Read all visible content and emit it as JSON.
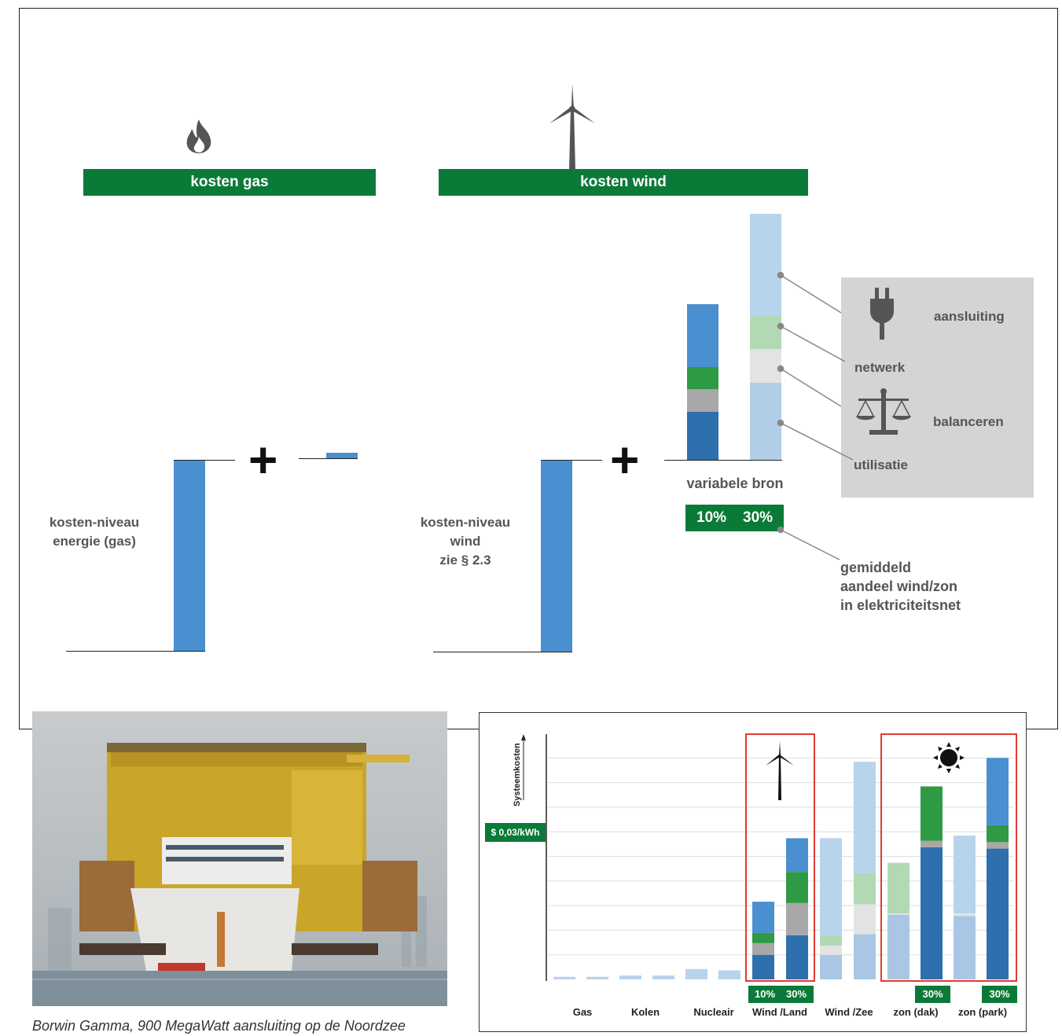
{
  "gas_panel": {
    "header": "kosten gas",
    "level_label_line1": "kosten-niveau",
    "level_label_line2": "energie (gas)",
    "icon": "flame-icon"
  },
  "wind_panel": {
    "header": "kosten wind",
    "level_label_line1": "kosten-niveau",
    "level_label_line2": "wind",
    "level_label_line3": "zie § 2.3",
    "icon": "wind-turbine-icon",
    "variable_label": "variabele bron",
    "pct_10": "10%",
    "pct_30": "30%"
  },
  "plus_sign": "+",
  "legend": {
    "aansluiting": "aansluiting",
    "netwerk": "netwerk",
    "balanceren": "balanceren",
    "utilisatie": "utilisatie",
    "share_line1": "gemiddeld",
    "share_line2": "aandeel wind/zon",
    "share_line3": "in elektriciteitsnet"
  },
  "photo": {
    "caption": "Borwin Gamma, 900 MegaWatt aansluiting op de Noordzee"
  },
  "colors": {
    "green_header": "#0b7a38",
    "bar_blue": "#4a8fd0",
    "dark_blue": "#2e6fad",
    "green": "#2e9a44",
    "gray": "#a8a8a8",
    "light_blue": "#b8d3ec",
    "light_green": "#b2d8b4",
    "light_gray": "#e3e3e3",
    "frame_red": "#e03b32"
  },
  "chart_data": {
    "type": "bar",
    "stacked": true,
    "ylabel": "Systeemkosten",
    "y_marker": "$ 0,03/kWh",
    "grid": true,
    "categories": [
      "Gas",
      "Kolen",
      "Nucleair",
      "Wind /Land",
      "Wind /Zee",
      "zon (dak)",
      "zon (park)"
    ],
    "penetration_labels": [
      "10%",
      "30%",
      "30%",
      "30%"
    ],
    "bars": [
      {
        "category": "Gas",
        "segments": [
          {
            "type": "base",
            "value": 0.1
          }
        ]
      },
      {
        "category": "Gas",
        "segments": [
          {
            "type": "base",
            "value": 0.1
          }
        ]
      },
      {
        "category": "Kolen",
        "segments": [
          {
            "type": "base",
            "value": 0.15
          }
        ]
      },
      {
        "category": "Kolen",
        "segments": [
          {
            "type": "base",
            "value": 0.15
          }
        ]
      },
      {
        "category": "Nucleair",
        "segments": [
          {
            "type": "base",
            "value": 0.4
          }
        ]
      },
      {
        "category": "Nucleair",
        "segments": [
          {
            "type": "base",
            "value": 0.35
          }
        ]
      },
      {
        "category": "Wind /Land",
        "share": "10%",
        "segments": [
          {
            "type": "utilisatie",
            "value": 0.95
          },
          {
            "type": "balanceren",
            "value": 0.45
          },
          {
            "type": "netwerk",
            "value": 0.4
          },
          {
            "type": "aansluiting",
            "value": 1.2
          }
        ]
      },
      {
        "category": "Wind /Land",
        "share": "30%",
        "segments": [
          {
            "type": "utilisatie",
            "value": 1.7
          },
          {
            "type": "balanceren",
            "value": 1.25
          },
          {
            "type": "netwerk",
            "value": 1.2
          },
          {
            "type": "aansluiting",
            "value": 1.3
          }
        ]
      },
      {
        "category": "Wind /Zee",
        "share": "10%",
        "segments": [
          {
            "type": "utilisatie",
            "value": 0.95
          },
          {
            "type": "balanceren",
            "value": 0.35
          },
          {
            "type": "netwerk",
            "value": 0.4
          },
          {
            "type": "aansluiting",
            "value": 3.75
          }
        ]
      },
      {
        "category": "Wind /Zee",
        "share": "30%",
        "segments": [
          {
            "type": "utilisatie",
            "value": 1.75
          },
          {
            "type": "balanceren",
            "value": 1.15
          },
          {
            "type": "netwerk",
            "value": 1.2
          },
          {
            "type": "aansluiting",
            "value": 4.3
          }
        ]
      },
      {
        "category": "zon (dak)",
        "share": "10%",
        "segments": [
          {
            "type": "utilisatie",
            "value": 2.5
          },
          {
            "type": "balanceren",
            "value": 0.05
          },
          {
            "type": "netwerk",
            "value": 1.95
          }
        ]
      },
      {
        "category": "zon (dak)",
        "share": "30%",
        "segments": [
          {
            "type": "utilisatie",
            "value": 5.1
          },
          {
            "type": "balanceren",
            "value": 0.25
          },
          {
            "type": "netwerk",
            "value": 2.1
          }
        ]
      },
      {
        "category": "zon (park)",
        "share": "10%",
        "segments": [
          {
            "type": "utilisatie",
            "value": 2.45
          },
          {
            "type": "balanceren",
            "value": 0.1
          },
          {
            "type": "aansluiting",
            "value": 3.0
          }
        ]
      },
      {
        "category": "zon (park)",
        "share": "30%",
        "segments": [
          {
            "type": "utilisatie",
            "value": 5.05
          },
          {
            "type": "balanceren",
            "value": 0.25
          },
          {
            "type": "netwerk",
            "value": 0.65
          },
          {
            "type": "aansluiting",
            "value": 2.6
          }
        ]
      }
    ],
    "ylim": [
      0,
      8.8
    ]
  }
}
